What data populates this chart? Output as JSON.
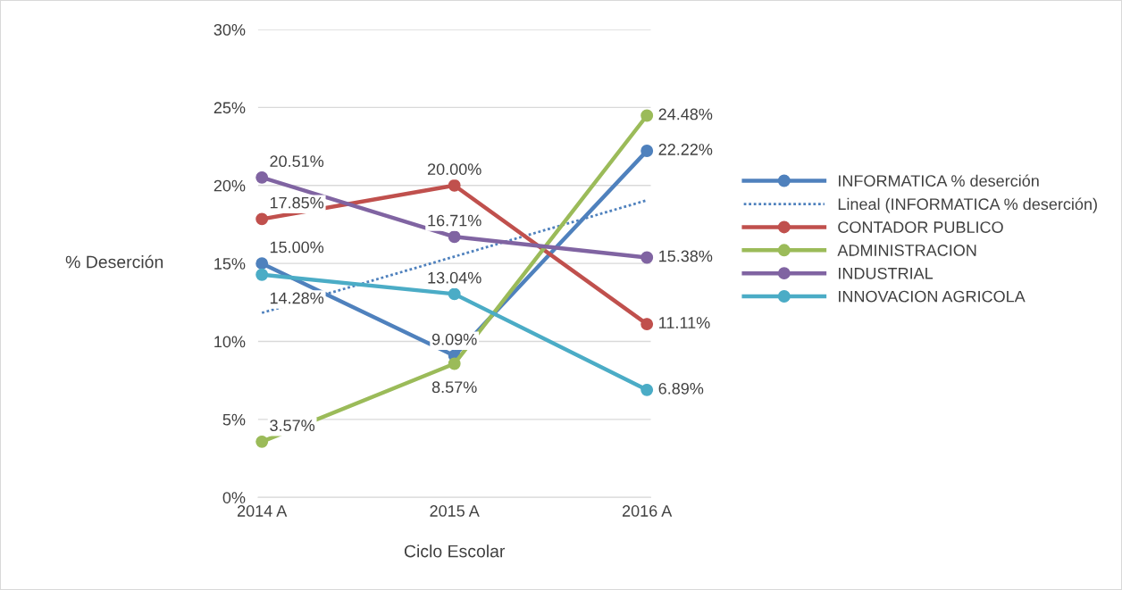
{
  "chart_data": {
    "type": "line",
    "xlabel": "Ciclo Escolar",
    "ylabel": "% Deserción",
    "categories": [
      "2014 A",
      "2015 A",
      "2016 A"
    ],
    "series": [
      {
        "name": "INFORMATICA % deserción",
        "color": "#4f81bd",
        "values": [
          15.0,
          9.09,
          22.22
        ],
        "value_labels": [
          "15.00%",
          "9.09%",
          "22.22%"
        ]
      },
      {
        "name": "Lineal (INFORMATICA % deserción)",
        "color": "#4f81bd",
        "x": [
          "2014 A",
          "2016 A"
        ],
        "values": [
          11.83,
          19.05
        ],
        "line_style": "dotted",
        "marker": "none"
      },
      {
        "name": "CONTADOR PUBLICO",
        "color": "#c0504d",
        "values": [
          17.85,
          20.0,
          11.11
        ],
        "value_labels": [
          "17.85%",
          "20.00%",
          "11.11%"
        ]
      },
      {
        "name": "ADMINISTRACION",
        "color": "#9bbb59",
        "values": [
          3.57,
          8.57,
          24.48
        ],
        "value_labels": [
          "3.57%",
          "8.57%",
          "24.48%"
        ]
      },
      {
        "name": "INDUSTRIAL",
        "color": "#8064a2",
        "values": [
          20.51,
          16.71,
          15.38
        ],
        "value_labels": [
          "20.51%",
          "16.71%",
          "15.38%"
        ]
      },
      {
        "name": "INNOVACION AGRICOLA",
        "color": "#4bacc6",
        "values": [
          14.28,
          13.04,
          6.89
        ],
        "value_labels": [
          "14.28%",
          "13.04%",
          "6.89%"
        ]
      }
    ],
    "ylim": [
      0,
      30
    ],
    "yticks": [
      {
        "value": 0,
        "label": "0%"
      },
      {
        "value": 5,
        "label": "5%"
      },
      {
        "value": 10,
        "label": "10%"
      },
      {
        "value": 15,
        "label": "15%"
      },
      {
        "value": 20,
        "label": "20%"
      },
      {
        "value": 25,
        "label": "25%"
      },
      {
        "value": 30,
        "label": "30%"
      }
    ],
    "grid": "y",
    "legend": "right",
    "marker": "circle",
    "line_style": "solid"
  }
}
